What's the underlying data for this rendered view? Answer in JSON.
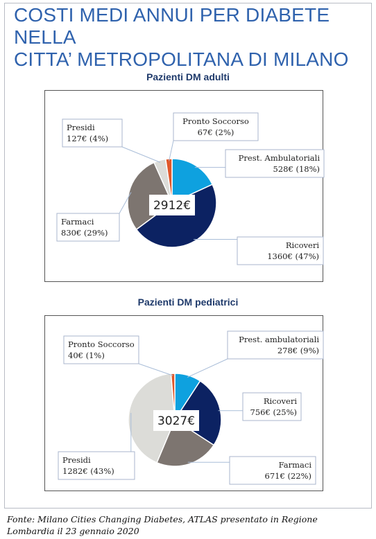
{
  "page": {
    "title_line1": "COSTI MEDI ANNUI PER DIABETE NELLA",
    "title_line2": "CITTA’ METROPOLITANA DI MILANO"
  },
  "footer": {
    "line1": "Fonte: Milano Cities Changing Diabetes, ATLAS presentato in Regione",
    "line2": "Lombardia il 23 gennaio 2020"
  },
  "chart_data": [
    {
      "type": "pie",
      "title": "Pazienti DM adulti",
      "center_label": "2912€",
      "slices": [
        {
          "key": "amb",
          "name": "Prest. Ambulatoriali",
          "value": 528,
          "value_label": "528€ (18%)",
          "percent": 18,
          "color": "#0ea1df"
        },
        {
          "key": "ric",
          "name": "Ricoveri",
          "value": 1360,
          "value_label": "1360€ (47%)",
          "percent": 47,
          "color": "#0c2262"
        },
        {
          "key": "far",
          "name": "Farmaci",
          "value": 830,
          "value_label": "830€ (29%)",
          "percent": 29,
          "color": "#7d7570"
        },
        {
          "key": "pre",
          "name": "Presidi",
          "value": 127,
          "value_label": "127€ (4%)",
          "percent": 4,
          "color": "#dcdcd8"
        },
        {
          "key": "ps",
          "name": "Pronto Soccorso",
          "value": 67,
          "value_label": "67€ (2%)",
          "percent": 2,
          "color": "#e0572a"
        }
      ]
    },
    {
      "type": "pie",
      "title": "Pazienti DM pediatrici",
      "center_label": "3027€",
      "slices": [
        {
          "key": "amb",
          "name": "Prest. ambulatoriali",
          "value": 278,
          "value_label": "278€ (9%)",
          "percent": 9,
          "color": "#0ea1df"
        },
        {
          "key": "ric",
          "name": "Ricoveri",
          "value": 756,
          "value_label": "756€ (25%)",
          "percent": 25,
          "color": "#0c2262"
        },
        {
          "key": "far",
          "name": "Farmaci",
          "value": 671,
          "value_label": "671€ (22%)",
          "percent": 22,
          "color": "#7d7570"
        },
        {
          "key": "pre",
          "name": "Presidi",
          "value": 1282,
          "value_label": "1282€ (43%)",
          "percent": 43,
          "color": "#dcdcd8"
        },
        {
          "key": "ps",
          "name": "Pronto Soccorso",
          "value": 40,
          "value_label": "40€ (1%)",
          "percent": 1,
          "color": "#e0572a"
        }
      ]
    }
  ]
}
